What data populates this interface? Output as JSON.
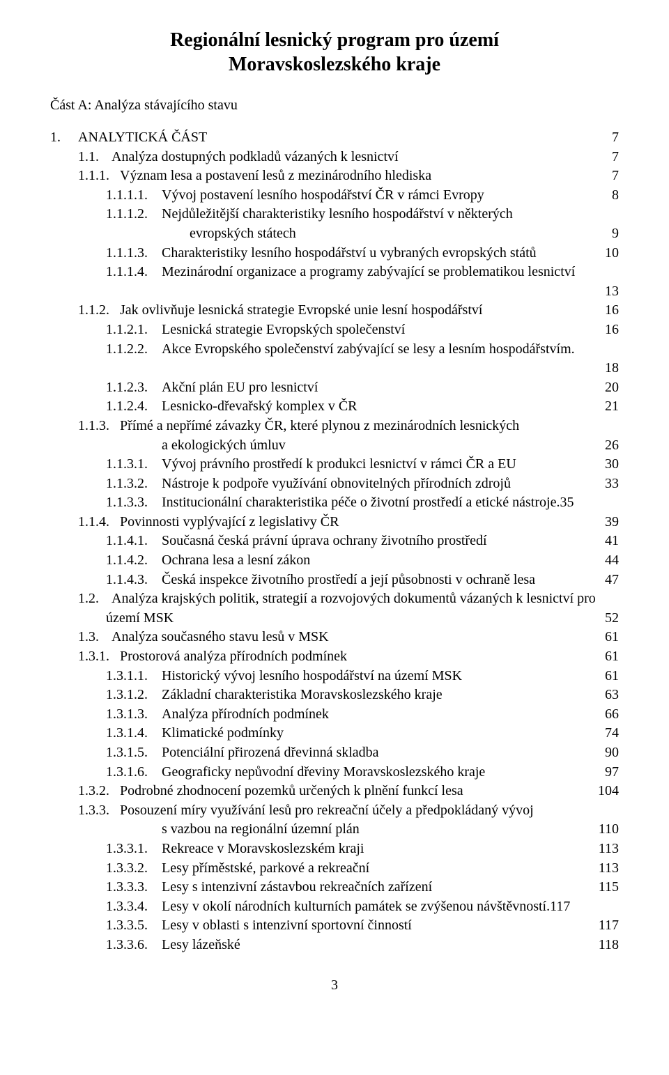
{
  "title_line1": "Regionální lesnický program pro území",
  "title_line2": "Moravskoslezského kraje",
  "subtitle": "Část A: Analýza stávajícího stavu",
  "page_number": "3",
  "toc": [
    {
      "num": "1.",
      "text": "ANALYTICKÁ ČÁST",
      "page": "7",
      "indent": 0,
      "sc": true
    },
    {
      "num": "1.1.",
      "text": "Analýza dostupných podkladů vázaných k lesnictví",
      "page": "7",
      "indent": 1
    },
    {
      "num": "1.1.1.",
      "text": "Význam lesa a postavení lesů z mezinárodního hlediska",
      "page": "7",
      "indent": 2
    },
    {
      "num": "1.1.1.1.",
      "text": "Vývoj postavení lesního hospodářství ČR v rámci Evropy",
      "page": "8",
      "indent": 3
    },
    {
      "num": "1.1.1.2.",
      "text": "Nejdůležitější charakteristiky lesního hospodářství v některých",
      "indent": 3,
      "nobreak": true
    },
    {
      "cont": "evropských státech",
      "page": "9",
      "contClass": "cont"
    },
    {
      "num": "1.1.1.3.",
      "text": "Charakteristiky lesního hospodářství u vybraných evropských států",
      "page": "10",
      "indent": 3
    },
    {
      "num": "1.1.1.4.",
      "text": "Mezinárodní organizace a programy zabývající se problematikou lesnictví",
      "indent": 3,
      "nobreak": true
    },
    {
      "solo_leader": true,
      "page": "13"
    },
    {
      "num": "1.1.2.",
      "text": "Jak ovlivňuje lesnická strategie Evropské unie lesní hospodářství",
      "page": "16",
      "indent": 2
    },
    {
      "num": "1.1.2.1.",
      "text": "Lesnická strategie Evropských společenství",
      "page": "16",
      "indent": 3
    },
    {
      "num": "1.1.2.2.",
      "text": "Akce Evropského společenství zabývající se lesy a lesním hospodářstvím.",
      "indent": 3,
      "nobreak": true
    },
    {
      "solo_leader": true,
      "page": "18"
    },
    {
      "num": "1.1.2.3.",
      "text": "Akční plán EU pro lesnictví",
      "page": "20",
      "indent": 3
    },
    {
      "num": "1.1.2.4.",
      "text": "Lesnicko-dřevařský komplex v ČR",
      "page": "21",
      "indent": 3
    },
    {
      "num": "1.1.3.",
      "text": "Přímé a nepřímé závazky ČR, které plynou z mezinárodních lesnických",
      "indent": 2,
      "nobreak": true
    },
    {
      "cont": "a ekologických úmluv",
      "page": "26",
      "contClass": "cont2"
    },
    {
      "num": "1.1.3.1.",
      "text": "Vývoj právního prostředí k produkci lesnictví v rámci ČR a EU",
      "page": "30",
      "indent": 3
    },
    {
      "num": "1.1.3.2.",
      "text": "Nástroje k podpoře využívání obnovitelných přírodních zdrojů",
      "page": "33",
      "indent": 3
    },
    {
      "num": "1.1.3.3.",
      "text": "Institucionální charakteristika péče o životní prostředí a etické nástroje",
      "page": "35",
      "indent": 3,
      "tight": true
    },
    {
      "num": "1.1.4.",
      "text": "Povinnosti vyplývající z legislativy ČR",
      "page": "39",
      "indent": 2
    },
    {
      "num": "1.1.4.1.",
      "text": "Současná česká právní úprava ochrany životního prostředí",
      "page": "41",
      "indent": 3
    },
    {
      "num": "1.1.4.2.",
      "text": "Ochrana lesa a lesní zákon",
      "page": "44",
      "indent": 3
    },
    {
      "num": "1.1.4.3.",
      "text": "Česká inspekce životního prostředí a její působnosti v ochraně lesa",
      "page": "47",
      "indent": 3
    },
    {
      "num": "1.2.",
      "text": "Analýza krajských politik, strategií a rozvojových dokumentů vázaných k lesnictví pro",
      "indent": 1,
      "nobreak": true
    },
    {
      "cont": "území MSK",
      "page": "52",
      "contClass": "cont0"
    },
    {
      "num": "1.3.",
      "text": "Analýza současného stavu lesů v MSK",
      "page": "61",
      "indent": 1
    },
    {
      "num": "1.3.1.",
      "text": "Prostorová analýza přírodních podmínek",
      "page": "61",
      "indent": 2
    },
    {
      "num": "1.3.1.1.",
      "text": "Historický vývoj lesního hospodářství na území MSK",
      "page": "61",
      "indent": 3
    },
    {
      "num": "1.3.1.2.",
      "text": "Základní charakteristika Moravskoslezského kraje",
      "page": "63",
      "indent": 3
    },
    {
      "num": "1.3.1.3.",
      "text": "Analýza přírodních podmínek",
      "page": "66",
      "indent": 3
    },
    {
      "num": "1.3.1.4.",
      "text": "Klimatické podmínky",
      "page": "74",
      "indent": 3
    },
    {
      "num": "1.3.1.5.",
      "text": "Potenciální přirozená dřevinná skladba",
      "page": "90",
      "indent": 3
    },
    {
      "num": "1.3.1.6.",
      "text": "Geograficky nepůvodní dřeviny Moravskoslezského kraje",
      "page": "97",
      "indent": 3
    },
    {
      "num": "1.3.2.",
      "text": "Podrobné zhodnocení pozemků určených k plnění funkcí lesa",
      "page": "104",
      "indent": 2
    },
    {
      "num": "1.3.3.",
      "text": "Posouzení míry využívání lesů pro rekreační účely a předpokládaný vývoj",
      "indent": 2,
      "nobreak": true
    },
    {
      "cont": "s vazbou na regionální územní plán",
      "page": "110",
      "contClass": "cont2"
    },
    {
      "num": "1.3.3.1.",
      "text": "Rekreace v Moravskoslezském kraji",
      "page": "113",
      "indent": 3
    },
    {
      "num": "1.3.3.2.",
      "text": "Lesy příměstské, parkové a rekreační",
      "page": "113",
      "indent": 3
    },
    {
      "num": "1.3.3.3.",
      "text": "Lesy s intenzivní zástavbou rekreačních zařízení",
      "page": "115",
      "indent": 3
    },
    {
      "num": "1.3.3.4.",
      "text": "Lesy v okolí národních kulturních památek se zvýšenou návštěvností",
      "page": "117",
      "indent": 3,
      "tight": true
    },
    {
      "num": "1.3.3.5.",
      "text": "Lesy v oblasti s intenzivní sportovní činností",
      "page": "117",
      "indent": 3
    },
    {
      "num": "1.3.3.6.",
      "text": "Lesy lázeňské",
      "page": "118",
      "indent": 3
    }
  ]
}
